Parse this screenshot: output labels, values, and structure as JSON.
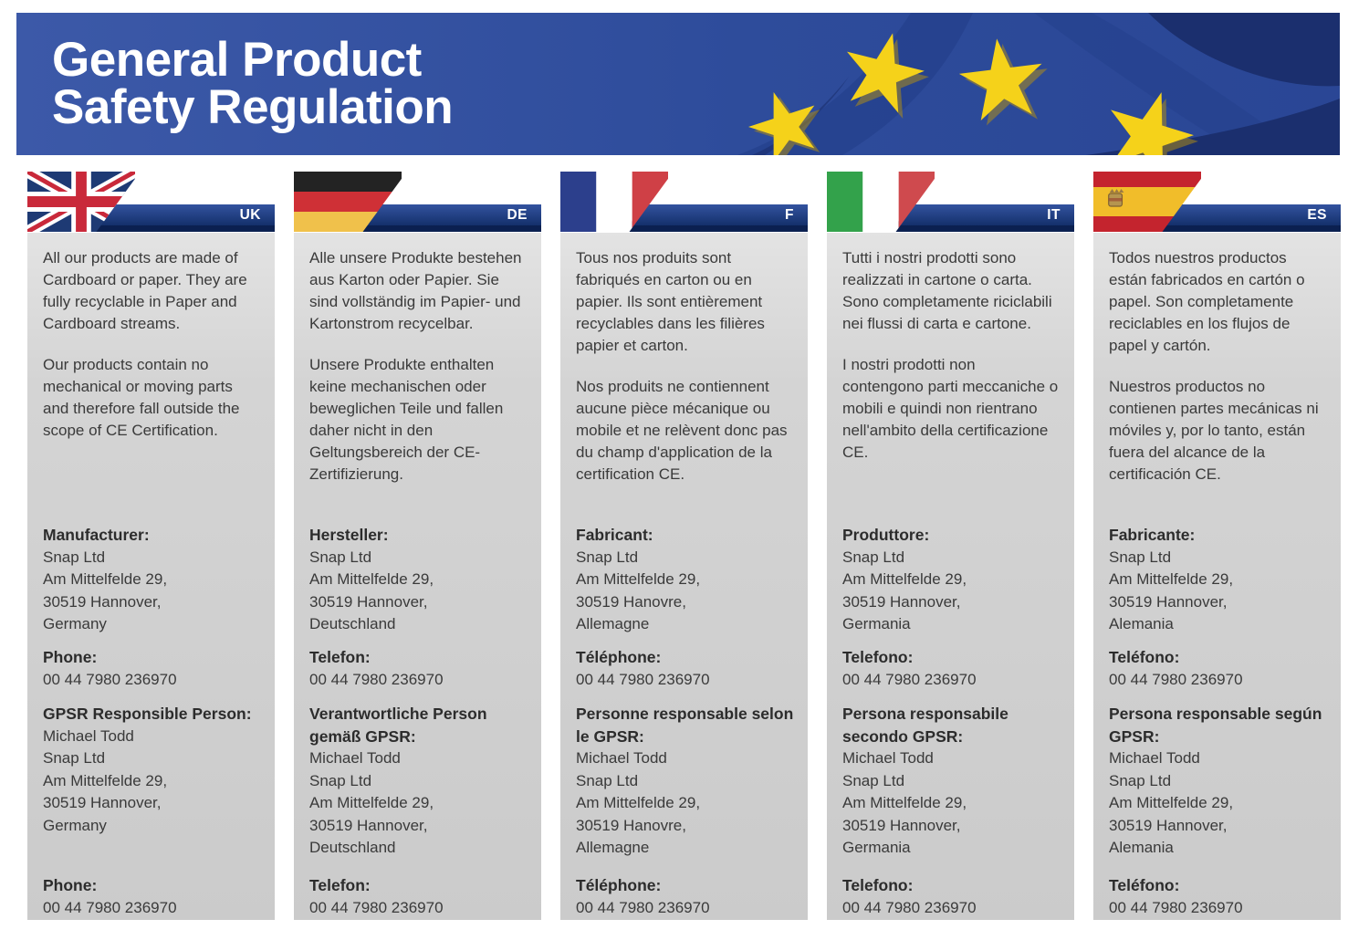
{
  "header": {
    "title_line1": "General Product",
    "title_line2": "Safety Regulation"
  },
  "colors": {
    "header_blue": "#2c4896",
    "header_dark_fold": "#1b2f6e",
    "star_yellow": "#f5d21a",
    "banner_navy": "#16316e",
    "banner_dark_edge": "#0b2050",
    "panel_gray": "#d2d2d2",
    "text_dark": "#3a3a3a"
  },
  "columns": [
    {
      "code": "UK",
      "flag": "uk",
      "para1": "All our products are made of Cardboard or paper. They are fully recyclable in Paper and Cardboard streams.",
      "para2": "Our products contain no mechanical or moving parts and therefore fall outside the scope of CE Certification.",
      "manufacturer_label": "Manufacturer:",
      "manufacturer_lines": [
        "Snap Ltd",
        "Am Mittelfelde 29,",
        "30519 Hannover,",
        "Germany"
      ],
      "phone_label": "Phone:",
      "phone_value": "00 44 7980 236970",
      "responsible_label": "GPSR Responsible Person:",
      "responsible_lines": [
        "Michael Todd",
        "Snap Ltd",
        "Am Mittelfelde 29,",
        "30519 Hannover,",
        "Germany"
      ],
      "phone2_label": "Phone:",
      "phone2_value": "00 44 7980 236970"
    },
    {
      "code": "DE",
      "flag": "de",
      "para1": "Alle unsere Produkte bestehen aus Karton oder Papier. Sie sind vollständig im Papier- und Kartonstrom recycelbar.",
      "para2": "Unsere Produkte enthalten keine mechanischen oder beweglichen Teile und fallen daher nicht in den Geltungsbereich der CE-Zertifizierung.",
      "manufacturer_label": "Hersteller:",
      "manufacturer_lines": [
        "Snap Ltd",
        "Am Mittelfelde 29,",
        "30519 Hannover,",
        "Deutschland"
      ],
      "phone_label": "Telefon:",
      "phone_value": "00 44 7980 236970",
      "responsible_label": "Verantwortliche Person gemäß GPSR:",
      "responsible_lines": [
        "Michael Todd",
        "Snap Ltd",
        "Am Mittelfelde 29,",
        "30519 Hannover,",
        "Deutschland"
      ],
      "phone2_label": "Telefon:",
      "phone2_value": "00 44 7980 236970"
    },
    {
      "code": "F",
      "flag": "fr",
      "para1": "Tous nos produits sont fabriqués en carton ou en papier. Ils sont entièrement recyclables dans les filières papier et carton.",
      "para2": "Nos produits ne contiennent aucune pièce mécanique ou mobile et ne relèvent donc pas du champ d'application de la certification CE.",
      "manufacturer_label": "Fabricant:",
      "manufacturer_lines": [
        "Snap Ltd",
        "Am Mittelfelde 29,",
        "30519 Hanovre,",
        "Allemagne"
      ],
      "phone_label": "Téléphone:",
      "phone_value": "00 44 7980 236970",
      "responsible_label": "Personne responsable selon le GPSR:",
      "responsible_lines": [
        "Michael Todd",
        "Snap Ltd",
        "Am Mittelfelde 29,",
        "30519 Hanovre,",
        "Allemagne"
      ],
      "phone2_label": "Téléphone:",
      "phone2_value": "00 44 7980 236970"
    },
    {
      "code": "IT",
      "flag": "it",
      "para1": "Tutti i nostri prodotti sono realizzati in cartone o carta. Sono completamente riciclabili nei flussi di carta e cartone.",
      "para2": "I nostri prodotti non contengono parti meccaniche o mobili e quindi non rientrano nell'ambito della certificazione CE.",
      "manufacturer_label": "Produttore:",
      "manufacturer_lines": [
        "Snap Ltd",
        "Am Mittelfelde 29,",
        "30519 Hannover,",
        "Germania"
      ],
      "phone_label": "Telefono:",
      "phone_value": "00 44 7980 236970",
      "responsible_label": "Persona responsabile secondo GPSR:",
      "responsible_lines": [
        "Michael Todd",
        "Snap Ltd",
        "Am Mittelfelde 29,",
        "30519 Hannover,",
        "Germania"
      ],
      "phone2_label": "Telefono:",
      "phone2_value": "00 44 7980 236970"
    },
    {
      "code": "ES",
      "flag": "es",
      "para1": "Todos nuestros productos están fabricados en cartón o papel. Son completamente reciclables en los flujos de papel y cartón.",
      "para2": "Nuestros productos no contienen partes mecánicas ni móviles y, por lo tanto, están fuera del alcance de la certificación CE.",
      "manufacturer_label": "Fabricante:",
      "manufacturer_lines": [
        "Snap Ltd",
        "Am Mittelfelde 29,",
        "30519 Hannover,",
        "Alemania"
      ],
      "phone_label": "Teléfono:",
      "phone_value": "00 44 7980 236970",
      "responsible_label": "Persona responsable según GPSR:",
      "responsible_lines": [
        "Michael Todd",
        "Snap Ltd",
        "Am Mittelfelde 29,",
        "30519 Hannover,",
        "Alemania"
      ],
      "phone2_label": "Teléfono:",
      "phone2_value": "00 44 7980 236970"
    }
  ]
}
